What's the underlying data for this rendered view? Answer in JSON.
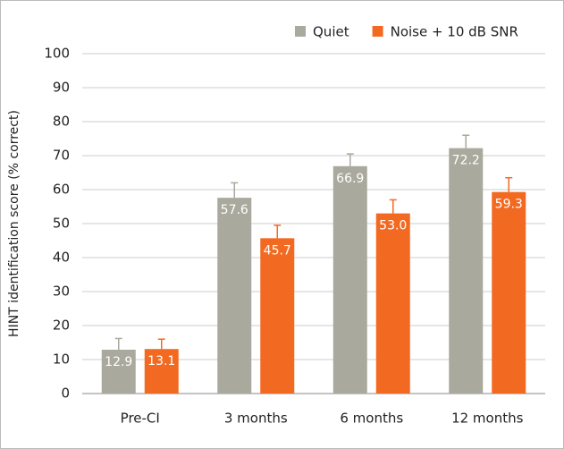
{
  "chart_data": {
    "type": "bar",
    "ylabel": "HINT identification score (% correct)",
    "categories": [
      "Pre-CI",
      "3 months",
      "6 months",
      "12 months"
    ],
    "series": [
      {
        "name": "Quiet",
        "color": "#aaa99e",
        "values": [
          12.9,
          57.6,
          66.9,
          72.2
        ],
        "errors": [
          3.3,
          4.4,
          3.6,
          3.8
        ],
        "value_labels": [
          "12.9",
          "57.6",
          "66.9",
          "72.2"
        ]
      },
      {
        "name": "Noise + 10 dB SNR",
        "color": "#f26a21",
        "values": [
          13.1,
          45.7,
          53.0,
          59.3
        ],
        "errors": [
          2.9,
          3.8,
          4.0,
          4.2
        ],
        "value_labels": [
          "13.1",
          "45.7",
          "53.0",
          "59.3"
        ]
      }
    ],
    "ylim": [
      0,
      100
    ],
    "yticks": [
      0,
      10,
      20,
      30,
      40,
      50,
      60,
      70,
      80,
      90,
      100
    ],
    "grid": true,
    "legend": "top-right"
  }
}
